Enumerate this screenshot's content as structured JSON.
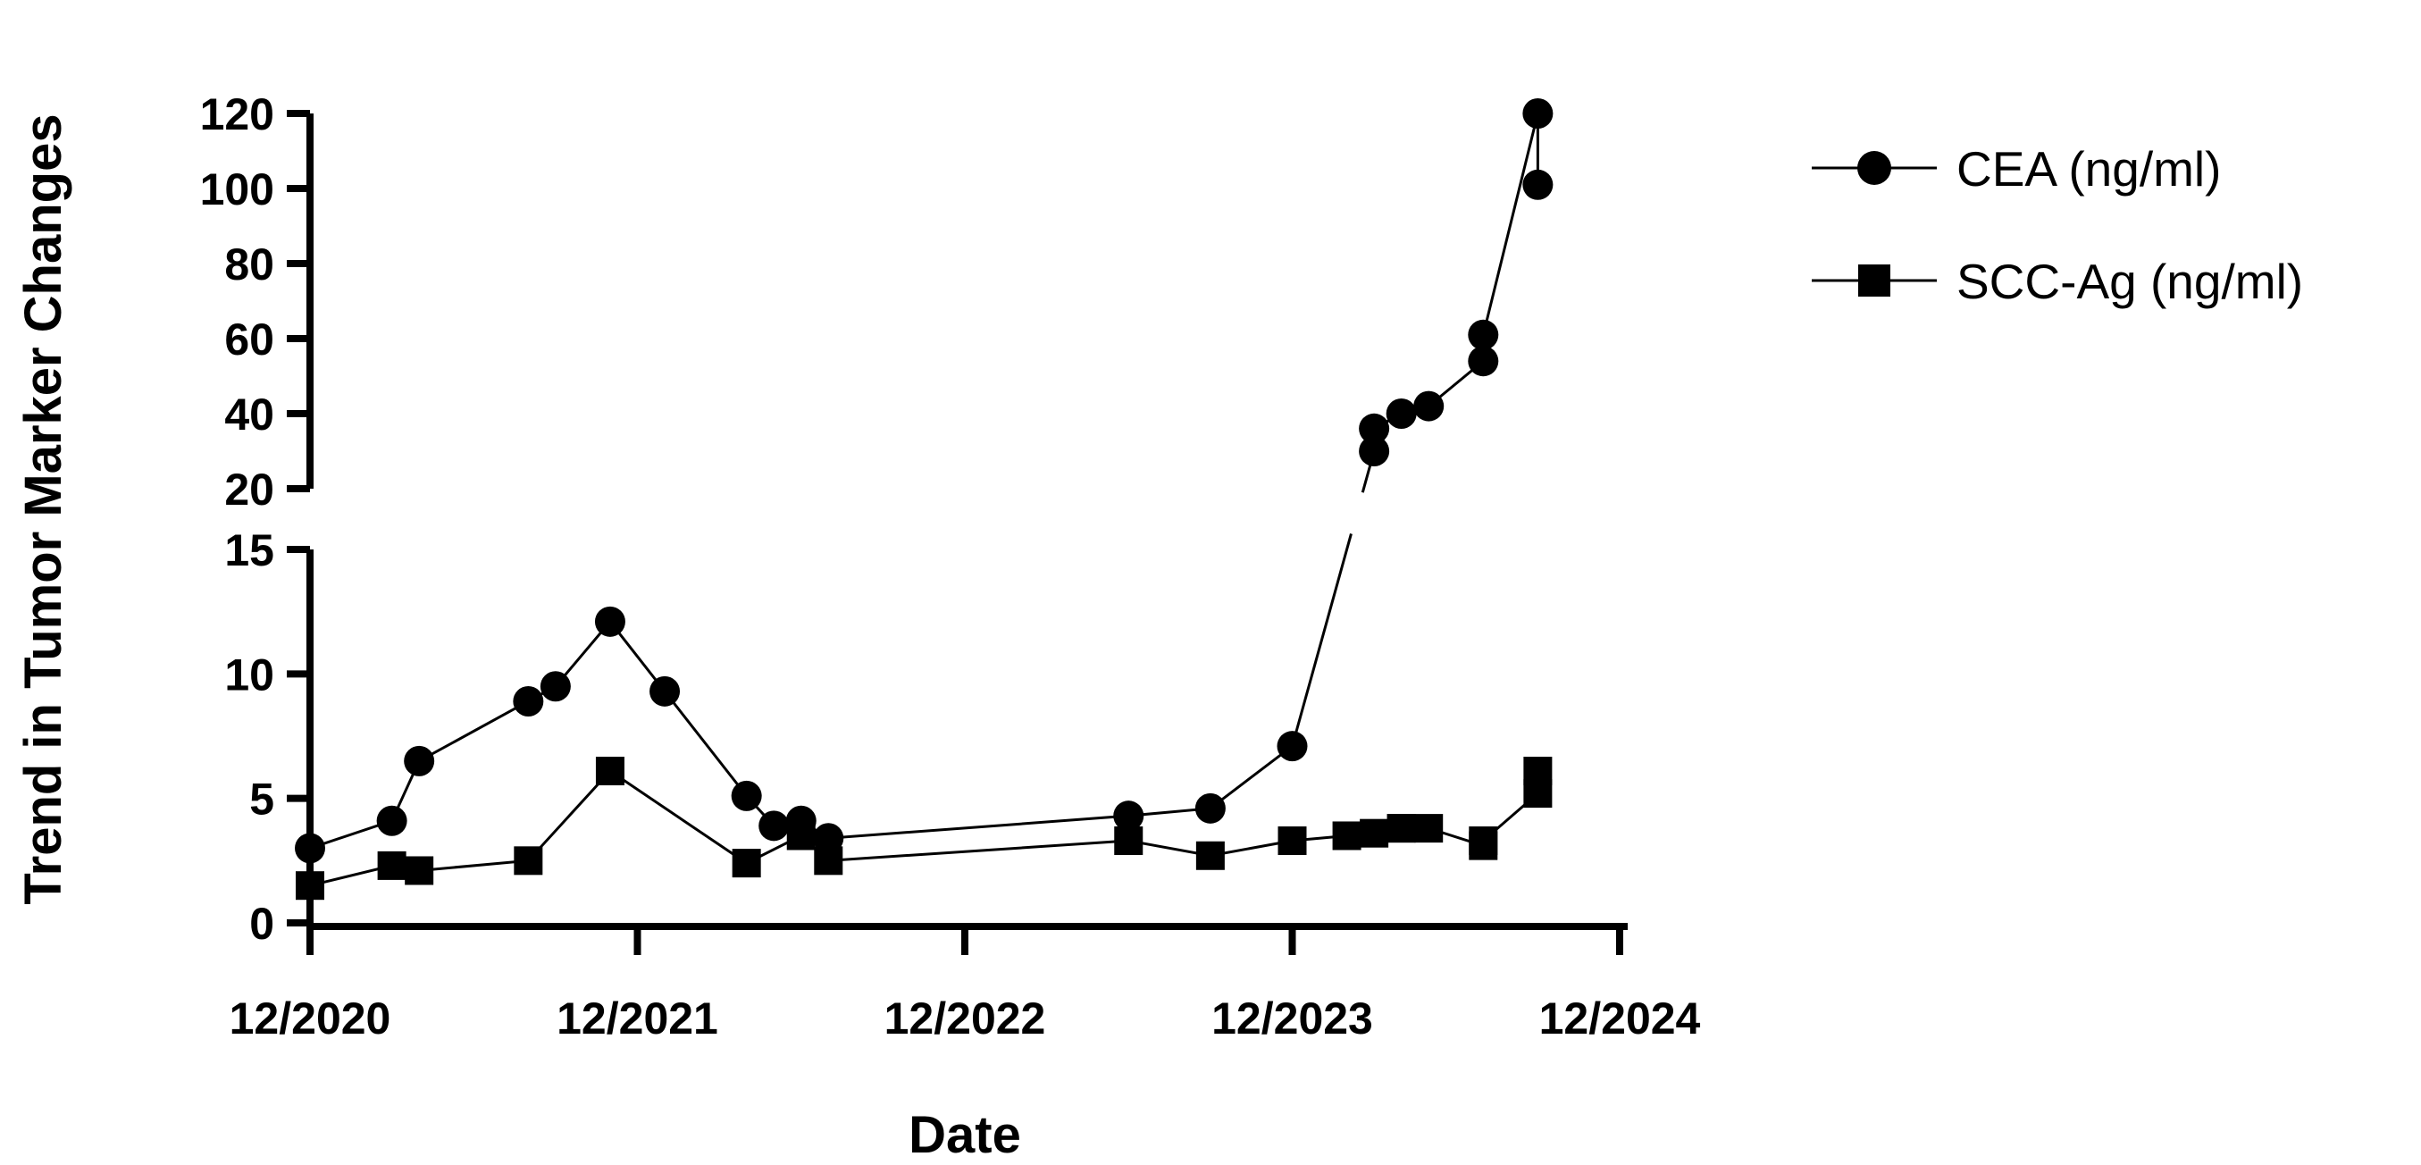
{
  "chart_data": {
    "type": "line",
    "title": "",
    "xlabel": "Date",
    "ylabel": "Trend in Tumor Marker Changes",
    "x_ticks": [
      "12/2020",
      "12/2021",
      "12/2022",
      "12/2023",
      "12/2024"
    ],
    "y_ticks_lower": [
      "0",
      "5",
      "10",
      "15"
    ],
    "y_ticks_upper": [
      "20",
      "40",
      "60",
      "80",
      "100",
      "120"
    ],
    "y_axis_break": [
      15,
      20
    ],
    "ylim": [
      0,
      120
    ],
    "xlim": [
      "2020-12",
      "2024-12"
    ],
    "grid": false,
    "legend_position": "top-right",
    "series": [
      {
        "name": "CEA (ng/ml)",
        "marker": "circle",
        "color": "#000000",
        "points": [
          {
            "x": "2020-12",
            "y": 3.0
          },
          {
            "x": "2021-03",
            "y": 4.1
          },
          {
            "x": "2021-04",
            "y": 6.5
          },
          {
            "x": "2021-08",
            "y": 8.9
          },
          {
            "x": "2021-09",
            "y": 9.5
          },
          {
            "x": "2021-11",
            "y": 12.1
          },
          {
            "x": "2022-01",
            "y": 9.3
          },
          {
            "x": "2022-04",
            "y": 5.1
          },
          {
            "x": "2022-05",
            "y": 3.9
          },
          {
            "x": "2022-06",
            "y": 4.1
          },
          {
            "x": "2022-07",
            "y": 3.4
          },
          {
            "x": "2023-06",
            "y": 4.3
          },
          {
            "x": "2023-09",
            "y": 4.6
          },
          {
            "x": "2023-12",
            "y": 7.1
          },
          {
            "x": "2024-03",
            "y": 30
          },
          {
            "x": "2024-03",
            "y": 36
          },
          {
            "x": "2024-04",
            "y": 40
          },
          {
            "x": "2024-05",
            "y": 42
          },
          {
            "x": "2024-07",
            "y": 54
          },
          {
            "x": "2024-07",
            "y": 61
          },
          {
            "x": "2024-09",
            "y": 120
          },
          {
            "x": "2024-09",
            "y": 101
          }
        ]
      },
      {
        "name": "SCC-Ag (ng/ml)",
        "marker": "square",
        "color": "#000000",
        "points": [
          {
            "x": "2020-12",
            "y": 1.5
          },
          {
            "x": "2021-03",
            "y": 2.3
          },
          {
            "x": "2021-04",
            "y": 2.1
          },
          {
            "x": "2021-08",
            "y": 2.5
          },
          {
            "x": "2021-11",
            "y": 6.1
          },
          {
            "x": "2022-04",
            "y": 2.4
          },
          {
            "x": "2022-06",
            "y": 3.5
          },
          {
            "x": "2022-07",
            "y": 2.5
          },
          {
            "x": "2023-06",
            "y": 3.3
          },
          {
            "x": "2023-09",
            "y": 2.7
          },
          {
            "x": "2023-12",
            "y": 3.3
          },
          {
            "x": "2024-02",
            "y": 3.5
          },
          {
            "x": "2024-03",
            "y": 3.6
          },
          {
            "x": "2024-04",
            "y": 3.8
          },
          {
            "x": "2024-04",
            "y": 3.8
          },
          {
            "x": "2024-05",
            "y": 3.8
          },
          {
            "x": "2024-07",
            "y": 3.1
          },
          {
            "x": "2024-07",
            "y": 3.3
          },
          {
            "x": "2024-09",
            "y": 5.2
          },
          {
            "x": "2024-09",
            "y": 6.1
          }
        ]
      }
    ]
  }
}
